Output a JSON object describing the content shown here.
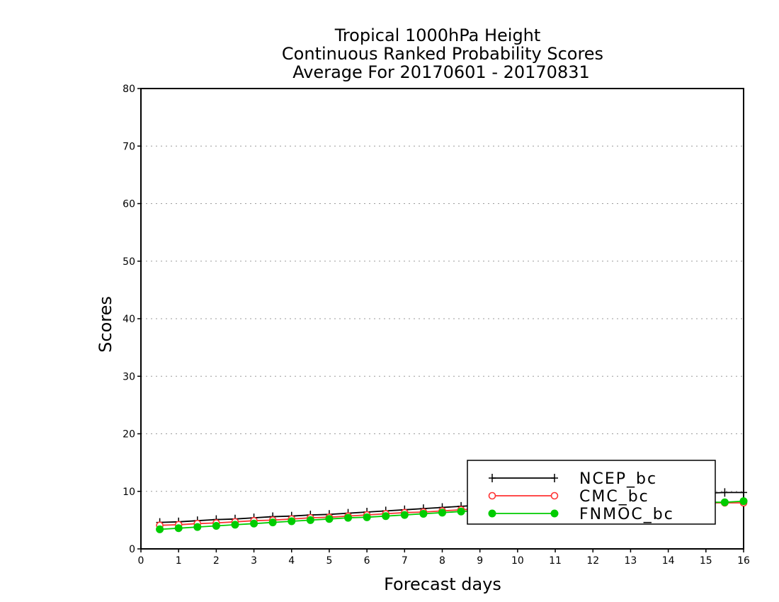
{
  "chart_data": {
    "type": "line",
    "title": [
      "Tropical 1000hPa Height",
      "Continuous Ranked Probability Scores",
      "Average For 20170601 - 20170831"
    ],
    "xlabel": "Forecast days",
    "ylabel": "Scores",
    "xlim": [
      0,
      16
    ],
    "ylim": [
      0,
      80
    ],
    "xticks": [
      "0",
      "1",
      "2",
      "3",
      "4",
      "5",
      "6",
      "7",
      "8",
      "9",
      "10",
      "11",
      "12",
      "13",
      "14",
      "15",
      "16"
    ],
    "yticks": [
      "0",
      "10",
      "20",
      "30",
      "40",
      "50",
      "60",
      "70",
      "80"
    ],
    "grid": "horizontal-dotted",
    "legend_position": "bottom-right",
    "x": [
      0.5,
      1,
      1.5,
      2,
      2.5,
      3,
      3.5,
      4,
      4.5,
      5,
      5.5,
      6,
      6.5,
      7,
      7.5,
      8,
      8.5,
      9,
      9.5,
      10,
      10.5,
      11,
      11.5,
      12,
      12.5,
      13,
      13.5,
      14,
      14.5,
      15,
      15.5,
      16
    ],
    "series": [
      {
        "name": "NCEP_bc",
        "color": "#000000",
        "marker": "plus",
        "values": [
          4.6,
          4.7,
          4.9,
          5.1,
          5.2,
          5.4,
          5.6,
          5.7,
          5.9,
          6.0,
          6.2,
          6.4,
          6.6,
          6.8,
          7.0,
          7.2,
          7.4,
          7.6,
          7.8,
          8.0,
          8.2,
          8.4,
          8.6,
          8.8,
          8.9,
          9.1,
          9.2,
          9.4,
          9.5,
          9.7,
          9.8,
          9.8
        ]
      },
      {
        "name": "CMC_bc",
        "color": "#ff3333",
        "marker": "open-circle",
        "values": [
          4.1,
          4.2,
          4.4,
          4.5,
          4.7,
          4.9,
          5.0,
          5.2,
          5.4,
          5.5,
          5.7,
          5.9,
          6.1,
          6.3,
          6.4,
          6.6,
          6.8,
          7.0,
          7.1,
          7.3,
          7.4,
          7.5,
          7.6,
          7.7,
          7.8,
          7.8,
          7.9,
          7.9,
          8.0,
          8.0,
          8.0,
          8.0
        ]
      },
      {
        "name": "FNMOC_bc",
        "color": "#00cc00",
        "marker": "filled-circle",
        "values": [
          3.4,
          3.6,
          3.8,
          4.0,
          4.2,
          4.4,
          4.6,
          4.8,
          5.0,
          5.2,
          5.4,
          5.5,
          5.7,
          5.9,
          6.1,
          6.3,
          6.5,
          6.7,
          6.9,
          7.0,
          7.2,
          7.3,
          7.5,
          7.6,
          7.7,
          7.8,
          7.9,
          8.0,
          8.0,
          8.1,
          8.1,
          8.3
        ]
      }
    ]
  }
}
